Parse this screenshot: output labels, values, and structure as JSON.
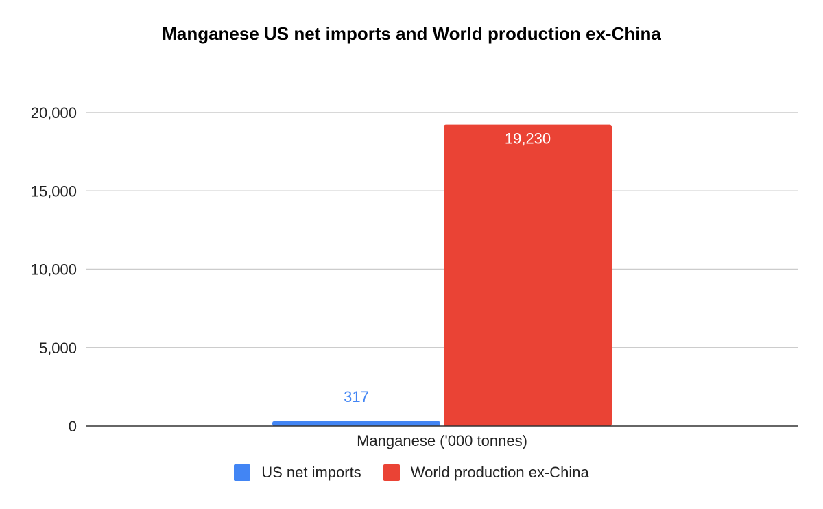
{
  "chart_data": {
    "type": "bar",
    "title": "Manganese US net imports and World production ex-China",
    "categories": [
      "Manganese ('000 tonnes)"
    ],
    "series": [
      {
        "name": "US net imports",
        "values": [
          317
        ],
        "color": "#4285F4",
        "label_color": "#4285F4"
      },
      {
        "name": "World production ex-China",
        "values": [
          19230
        ],
        "color": "#EA4335",
        "label_color": "#ffffff"
      }
    ],
    "yticks": [
      "0",
      "5,000",
      "10,000",
      "15,000",
      "20,000"
    ],
    "ylim": [
      0,
      20000
    ],
    "data_labels": [
      "317",
      "19,230"
    ],
    "grid": true,
    "legend_position": "bottom"
  }
}
